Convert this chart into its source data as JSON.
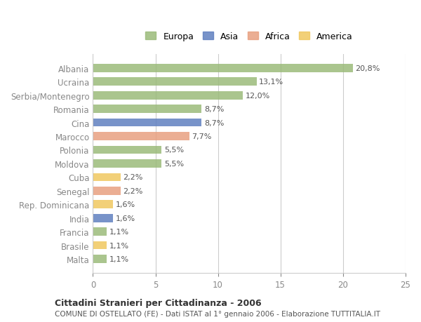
{
  "countries": [
    "Albania",
    "Ucraina",
    "Serbia/Montenegro",
    "Romania",
    "Cina",
    "Marocco",
    "Polonia",
    "Moldova",
    "Cuba",
    "Senegal",
    "Rep. Dominicana",
    "India",
    "Francia",
    "Brasile",
    "Malta"
  ],
  "values": [
    20.8,
    13.1,
    12.0,
    8.7,
    8.7,
    7.7,
    5.5,
    5.5,
    2.2,
    2.2,
    1.6,
    1.6,
    1.1,
    1.1,
    1.1
  ],
  "labels": [
    "20,8%",
    "13,1%",
    "12,0%",
    "8,7%",
    "8,7%",
    "7,7%",
    "5,5%",
    "5,5%",
    "2,2%",
    "2,2%",
    "1,6%",
    "1,6%",
    "1,1%",
    "1,1%",
    "1,1%"
  ],
  "categories": [
    "Europa",
    "Europa",
    "Europa",
    "Europa",
    "Asia",
    "Africa",
    "Europa",
    "Europa",
    "America",
    "Africa",
    "America",
    "Asia",
    "Europa",
    "America",
    "Europa"
  ],
  "colors": {
    "Europa": "#9BBB7A",
    "Asia": "#6080C0",
    "Africa": "#E8A080",
    "America": "#F0C860"
  },
  "legend_colors": {
    "Europa": "#9BBB7A",
    "Asia": "#6080C0",
    "Africa": "#E8A080",
    "America": "#F0C860"
  },
  "xlim": [
    0,
    25
  ],
  "xticks": [
    0,
    5,
    10,
    15,
    20,
    25
  ],
  "title": "Cittadini Stranieri per Cittadinanza - 2006",
  "subtitle": "COMUNE DI OSTELLATO (FE) - Dati ISTAT al 1° gennaio 2006 - Elaborazione TUTTITALIA.IT",
  "background_color": "#ffffff",
  "bar_height": 0.6,
  "grid_color": "#cccccc"
}
